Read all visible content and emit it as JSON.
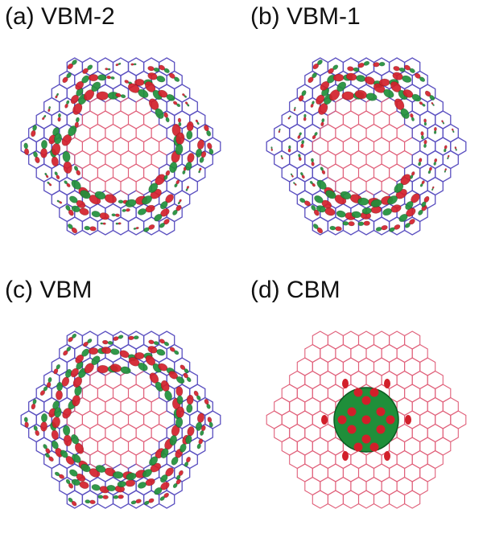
{
  "panels": [
    {
      "id": "a",
      "label": "(a) VBM-2",
      "orbital": "VBM-2"
    },
    {
      "id": "b",
      "label": "(b) VBM-1",
      "orbital": "VBM-1"
    },
    {
      "id": "c",
      "label": "(c) VBM",
      "orbital": "VBM"
    },
    {
      "id": "d",
      "label": "(d) CBM",
      "orbital": "CBM"
    }
  ],
  "colors": {
    "inner_lattice": "#e0607a",
    "outer_lattice": "#5a4fc0",
    "lobe_positive": "#d21f2a",
    "lobe_negative": "#1f8f3a"
  }
}
